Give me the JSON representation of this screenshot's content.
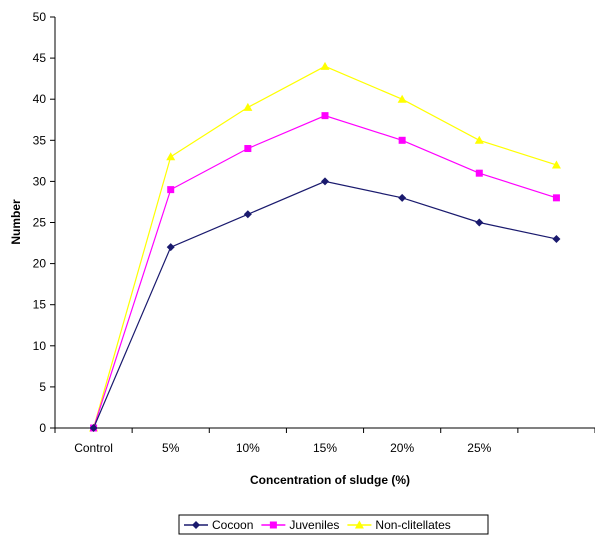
{
  "chart_data": {
    "type": "line",
    "title": "",
    "xlabel": "Concentration of sludge (%)",
    "ylabel": "Number",
    "categories": [
      "Control",
      "5%",
      "10%",
      "15%",
      "20%",
      "25%",
      ""
    ],
    "ylim": [
      0,
      50
    ],
    "yticks": [
      0,
      5,
      10,
      15,
      20,
      25,
      30,
      35,
      40,
      45,
      50
    ],
    "grid": false,
    "legend_position": "bottom",
    "series": [
      {
        "name": "Cocoon",
        "values": [
          0,
          22,
          26,
          30,
          28,
          25,
          23
        ],
        "color": "#1a1a6e",
        "marker": "diamond"
      },
      {
        "name": "Juveniles",
        "values": [
          0,
          29,
          34,
          38,
          35,
          31,
          28
        ],
        "color": "#ff00ff",
        "marker": "square"
      },
      {
        "name": "Non-clitellates",
        "values": [
          0,
          33,
          39,
          44,
          40,
          35,
          32
        ],
        "color": "#ffff00",
        "marker": "triangle"
      }
    ]
  }
}
